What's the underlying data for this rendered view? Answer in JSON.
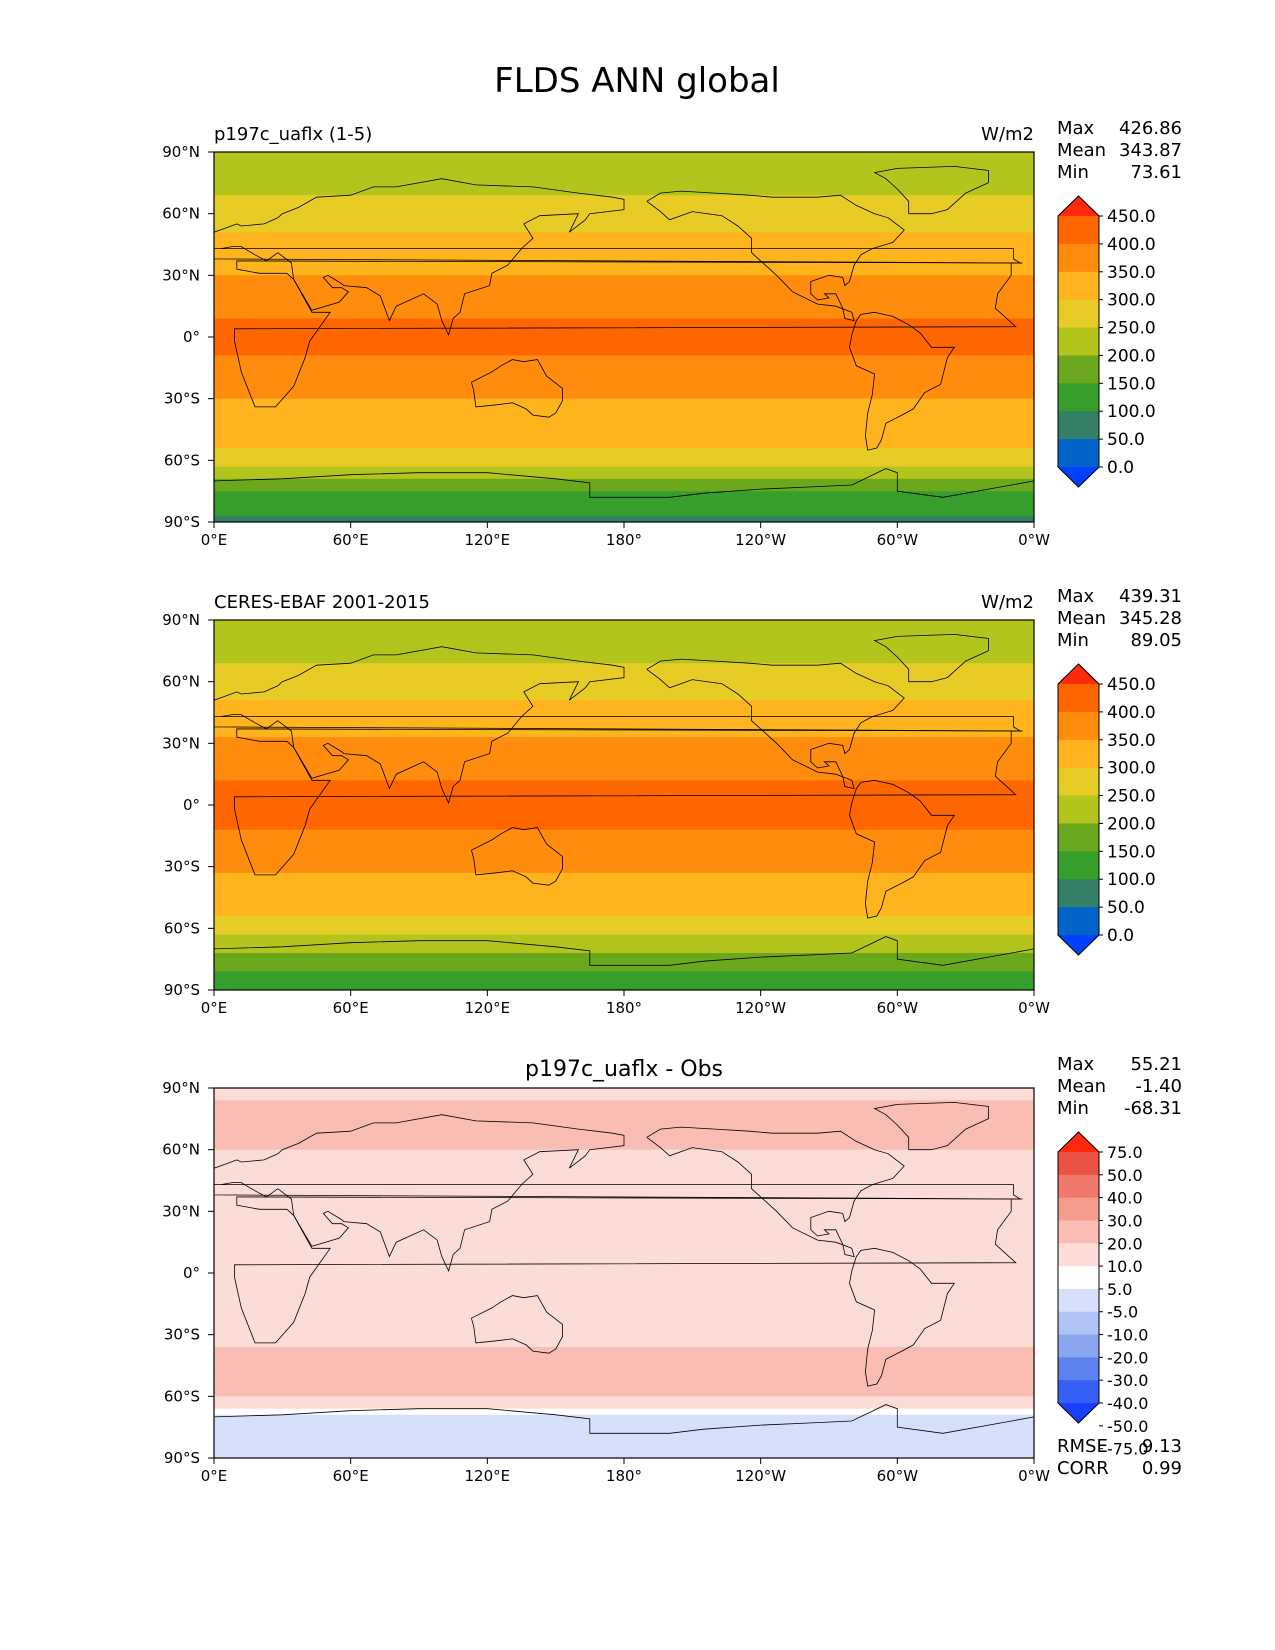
{
  "figure_title": "FLDS ANN global",
  "colors": {
    "abs_levels": [
      "#0040ff",
      "#0064c8",
      "#338066",
      "#389e2b",
      "#6ba81e",
      "#b3c41c",
      "#e6cc24",
      "#ffb31c",
      "#ff8c0d",
      "#ff6600",
      "#ff2a0d"
    ],
    "diff_levels": [
      "#1a40ff",
      "#3660f5",
      "#5e82ed",
      "#8aa4ef",
      "#b2c4f5",
      "#d6e0fb",
      "#ffffff",
      "#fcdcd6",
      "#f9bdb3",
      "#f59c8f",
      "#f0786a",
      "#ea5246",
      "#ff2a0d"
    ],
    "coastline": "#000000",
    "frame": "#000000"
  },
  "x_ticks": [
    "0°E",
    "60°E",
    "120°E",
    "180°",
    "120°W",
    "60°W",
    "0°W"
  ],
  "y_ticks": [
    "90°N",
    "60°N",
    "30°N",
    "0°",
    "30°S",
    "60°S",
    "90°S"
  ],
  "stats_labels": {
    "max": "Max",
    "mean": "Mean",
    "min": "Min",
    "rmse": "RMSE",
    "corr": "CORR"
  },
  "chart_data": [
    {
      "type": "heatmap",
      "title": "p197c_uaflx (1-5)",
      "units": "W/m2",
      "stats": {
        "max": "426.86",
        "mean": "343.87",
        "min": "73.61"
      },
      "colorbar_labels": [
        "450.0",
        "400.0",
        "350.0",
        "300.0",
        "250.0",
        "200.0",
        "150.0",
        "100.0",
        "50.0",
        "0.0"
      ],
      "xlim": [
        0,
        360
      ],
      "ylim": [
        -90,
        90
      ],
      "zonal_mean_profile": [
        {
          "lat": 90,
          "value": 210
        },
        {
          "lat": 75,
          "value": 230
        },
        {
          "lat": 60,
          "value": 280
        },
        {
          "lat": 45,
          "value": 310
        },
        {
          "lat": 30,
          "value": 350
        },
        {
          "lat": 15,
          "value": 390
        },
        {
          "lat": 0,
          "value": 410
        },
        {
          "lat": -15,
          "value": 390
        },
        {
          "lat": -30,
          "value": 350
        },
        {
          "lat": -45,
          "value": 320
        },
        {
          "lat": -60,
          "value": 280
        },
        {
          "lat": -75,
          "value": 150
        },
        {
          "lat": -90,
          "value": 90
        }
      ]
    },
    {
      "type": "heatmap",
      "title": "CERES-EBAF 2001-2015",
      "units": "W/m2",
      "stats": {
        "max": "439.31",
        "mean": "345.28",
        "min": "89.05"
      },
      "colorbar_labels": [
        "450.0",
        "400.0",
        "350.0",
        "300.0",
        "250.0",
        "200.0",
        "150.0",
        "100.0",
        "50.0",
        "0.0"
      ],
      "xlim": [
        0,
        360
      ],
      "ylim": [
        -90,
        90
      ],
      "zonal_mean_profile": [
        {
          "lat": 90,
          "value": 210
        },
        {
          "lat": 75,
          "value": 230
        },
        {
          "lat": 60,
          "value": 280
        },
        {
          "lat": 45,
          "value": 315
        },
        {
          "lat": 30,
          "value": 355
        },
        {
          "lat": 15,
          "value": 395
        },
        {
          "lat": 0,
          "value": 415
        },
        {
          "lat": -15,
          "value": 395
        },
        {
          "lat": -30,
          "value": 355
        },
        {
          "lat": -45,
          "value": 320
        },
        {
          "lat": -60,
          "value": 280
        },
        {
          "lat": -75,
          "value": 170
        },
        {
          "lat": -90,
          "value": 110
        }
      ]
    },
    {
      "type": "heatmap",
      "title": "p197c_uaflx - Obs",
      "units": "",
      "stats": {
        "max": "55.21",
        "mean": "-1.40",
        "min": "-68.31",
        "rmse": "9.13",
        "corr": "0.99"
      },
      "colorbar_labels": [
        "75.0",
        "50.0",
        "40.0",
        "30.0",
        "20.0",
        "10.0",
        "5.0",
        "-5.0",
        "-10.0",
        "-20.0",
        "-30.0",
        "-40.0",
        "-50.0",
        "-75.0"
      ],
      "xlim": [
        0,
        360
      ],
      "ylim": [
        -90,
        90
      ],
      "zonal_mean_profile": [
        {
          "lat": 90,
          "value": 0
        },
        {
          "lat": 75,
          "value": 10
        },
        {
          "lat": 60,
          "value": 5
        },
        {
          "lat": 45,
          "value": 0
        },
        {
          "lat": 30,
          "value": -5
        },
        {
          "lat": 15,
          "value": 0
        },
        {
          "lat": 0,
          "value": 0
        },
        {
          "lat": -15,
          "value": -5
        },
        {
          "lat": -30,
          "value": 0
        },
        {
          "lat": -45,
          "value": 10
        },
        {
          "lat": -60,
          "value": 5
        },
        {
          "lat": -75,
          "value": -20
        },
        {
          "lat": -90,
          "value": -10
        }
      ]
    }
  ]
}
